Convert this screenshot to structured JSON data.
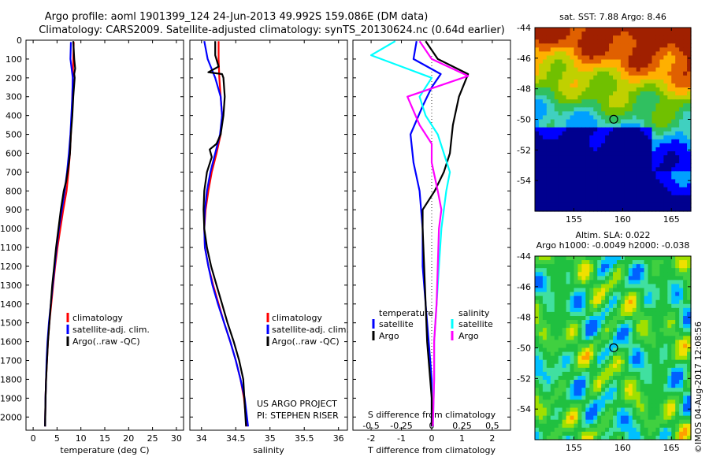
{
  "header": {
    "title1": "Argo profile: aoml 1901399_124 24-Jun-2013 49.992S 159.086E (DM data)",
    "title2": "Climatology: CARS2009. Satellite-adjusted climatology: synTS_20130624.nc (0.64d earlier)"
  },
  "chart_data": [
    {
      "type": "line",
      "id": "temperature",
      "xlabel": "temperature (deg C)",
      "ylabel": "",
      "xlim": [
        -1.5,
        31.5
      ],
      "ylim": [
        2070,
        0
      ],
      "xticks": [
        0,
        5,
        10,
        15,
        20,
        25,
        30
      ],
      "yticks": [
        0,
        100,
        200,
        300,
        400,
        500,
        600,
        700,
        800,
        900,
        1000,
        1100,
        1200,
        1300,
        1400,
        1500,
        1600,
        1700,
        1800,
        1900,
        2000
      ],
      "legend": [
        "climatology",
        "satellite-adj. clim.",
        "Argo(..raw -QC)"
      ],
      "series": [
        {
          "name": "climatology",
          "color": "#ff0000",
          "x": [
            8.5,
            8.4,
            8.3,
            8.2,
            8.1,
            7.9,
            7.7,
            7.4,
            7.0,
            6.3,
            5.7,
            5.1,
            4.6,
            4.2,
            3.8,
            3.4,
            3.1,
            2.9,
            2.7,
            2.6,
            2.5
          ],
          "y": [
            10,
            100,
            200,
            300,
            400,
            500,
            600,
            700,
            800,
            900,
            1000,
            1100,
            1200,
            1300,
            1400,
            1500,
            1600,
            1700,
            1800,
            1900,
            2050
          ]
        },
        {
          "name": "satellite-adj. clim.",
          "color": "#0000ff",
          "x": [
            7.9,
            7.8,
            8.3,
            8.2,
            8.0,
            7.8,
            7.5,
            7.1,
            6.6,
            6.0,
            5.4,
            4.9,
            4.5,
            4.1,
            3.7,
            3.3,
            3.0,
            2.8,
            2.7,
            2.6,
            2.5
          ],
          "y": [
            10,
            100,
            200,
            300,
            400,
            500,
            600,
            700,
            800,
            900,
            1000,
            1100,
            1200,
            1300,
            1400,
            1500,
            1600,
            1700,
            1800,
            1900,
            2050
          ]
        },
        {
          "name": "Argo(..raw -QC)",
          "color": "#000000",
          "x": [
            8.4,
            8.5,
            8.6,
            8.8,
            8.6,
            8.7,
            8.4,
            8.2,
            7.9,
            7.7,
            7.5,
            7.2,
            6.9,
            6.4,
            5.8,
            5.3,
            4.8,
            4.4,
            4.0,
            3.7,
            3.4,
            3.1,
            2.9,
            2.7,
            2.6,
            2.5
          ],
          "y": [
            5,
            50,
            100,
            150,
            180,
            200,
            300,
            400,
            500,
            600,
            650,
            700,
            750,
            800,
            900,
            1000,
            1100,
            1200,
            1300,
            1400,
            1500,
            1600,
            1700,
            1800,
            1900,
            2050
          ]
        }
      ]
    },
    {
      "type": "line",
      "id": "salinity",
      "xlabel": "salinity",
      "ylabel": "",
      "xlim": [
        33.83,
        36.13
      ],
      "ylim": [
        2070,
        0
      ],
      "xticks": [
        34,
        34.5,
        35,
        35.5,
        36
      ],
      "legend": [
        "climatology",
        "satellite-adj. clim.",
        "Argo(..raw -QC)"
      ],
      "series": [
        {
          "name": "climatology",
          "color": "#ff0000",
          "x": [
            34.25,
            34.25,
            34.26,
            34.28,
            34.3,
            34.28,
            34.22,
            34.15,
            34.1,
            34.06,
            34.04,
            34.05,
            34.1,
            34.17,
            34.25,
            34.33,
            34.42,
            34.5,
            34.57,
            34.62,
            34.66
          ],
          "y": [
            5,
            100,
            200,
            300,
            400,
            500,
            600,
            700,
            800,
            900,
            1000,
            1100,
            1200,
            1300,
            1400,
            1500,
            1600,
            1700,
            1800,
            1900,
            2050
          ]
        },
        {
          "name": "satellite-adj. clim.",
          "color": "#0000ff",
          "x": [
            34.04,
            34.09,
            34.2,
            34.28,
            34.3,
            34.27,
            34.2,
            34.13,
            34.08,
            34.05,
            34.04,
            34.05,
            34.1,
            34.16,
            34.24,
            34.33,
            34.42,
            34.5,
            34.57,
            34.63,
            34.68
          ],
          "y": [
            5,
            100,
            200,
            300,
            400,
            500,
            600,
            700,
            800,
            900,
            1000,
            1100,
            1200,
            1300,
            1400,
            1500,
            1600,
            1700,
            1800,
            1900,
            2050
          ]
        },
        {
          "name": "Argo(..raw -QC)",
          "color": "#000000",
          "x": [
            34.2,
            34.2,
            34.25,
            34.1,
            34.3,
            34.32,
            34.34,
            34.32,
            34.28,
            34.22,
            34.12,
            34.15,
            34.08,
            34.04,
            34.03,
            34.04,
            34.08,
            34.14,
            34.22,
            34.3,
            34.38,
            34.47,
            34.55,
            34.61,
            34.65
          ],
          "y": [
            5,
            80,
            140,
            170,
            180,
            200,
            300,
            400,
            500,
            550,
            580,
            620,
            700,
            800,
            900,
            1000,
            1100,
            1200,
            1300,
            1400,
            1500,
            1600,
            1700,
            1800,
            2050
          ]
        }
      ],
      "annotations": [
        "US ARGO PROJECT",
        "PI: STEPHEN RISER"
      ]
    },
    {
      "type": "line",
      "id": "differences",
      "xlabel": "T difference from climatology",
      "xlabel2": "S difference from climatology",
      "xlim": [
        -2.6,
        2.6
      ],
      "ylim": [
        2070,
        0
      ],
      "xticks": [
        -2,
        -1,
        0,
        1,
        2
      ],
      "xticks2_labels": [
        "-0.5",
        "-0.25",
        "0",
        "0.25",
        "0.5"
      ],
      "xticks2_values": [
        -0.5,
        -0.25,
        0,
        0.25,
        0.5
      ],
      "legend_groups": [
        {
          "title": "temperature",
          "items": [
            "satellite",
            "Argo"
          ]
        },
        {
          "title": "salinity",
          "items": [
            "satellite",
            "Argo"
          ]
        }
      ],
      "series": [
        {
          "name": "temperature satellite",
          "color": "#0000ff",
          "x": [
            -0.5,
            -0.6,
            0.3,
            0.0,
            -0.3,
            -0.7,
            -0.6,
            -0.4,
            -0.3,
            -0.3,
            -0.2,
            -0.15,
            -0.1,
            -0.05,
            0.0,
            0.0,
            0.0
          ],
          "y": [
            5,
            100,
            180,
            250,
            350,
            500,
            650,
            800,
            1000,
            1200,
            1400,
            1500,
            1600,
            1700,
            1800,
            1900,
            2050
          ]
        },
        {
          "name": "temperature Argo",
          "color": "#000000",
          "x": [
            -0.2,
            0.2,
            1.2,
            0.9,
            0.7,
            0.6,
            0.4,
            0.1,
            -0.3,
            -0.3,
            -0.25,
            -0.2,
            -0.15,
            -0.05,
            0.0,
            0.0
          ],
          "y": [
            5,
            100,
            180,
            300,
            450,
            600,
            700,
            800,
            900,
            1000,
            1200,
            1400,
            1600,
            1800,
            1900,
            2050
          ]
        },
        {
          "name": "salinity satellite",
          "color": "#00ffff",
          "x": [
            -0.3,
            -0.5,
            0.0,
            -0.1,
            -0.05,
            0.05,
            0.1,
            0.15,
            0.12,
            0.1,
            0.08,
            0.06,
            0.04,
            0.02,
            0.02,
            0.01
          ],
          "y": [
            5,
            80,
            200,
            300,
            400,
            500,
            600,
            700,
            800,
            900,
            1000,
            1200,
            1400,
            1600,
            1800,
            2050
          ]
        },
        {
          "name": "salinity Argo",
          "color": "#ff00ff",
          "x": [
            -0.1,
            0.0,
            0.3,
            -0.2,
            -0.1,
            0.0,
            0.0,
            0.05,
            0.08,
            0.06,
            0.05,
            0.04,
            0.02,
            0.02,
            0.01
          ],
          "y": [
            5,
            100,
            190,
            300,
            450,
            550,
            650,
            800,
            900,
            1000,
            1200,
            1400,
            1600,
            1800,
            2050
          ]
        }
      ]
    },
    {
      "type": "heatmap",
      "id": "sst-map",
      "title": "sat. SST: 7.88 Argo: 8.46",
      "xticks": [
        155,
        160,
        165
      ],
      "yticks": [
        -44,
        -46,
        -48,
        -50,
        -52,
        -54
      ],
      "xlim": [
        151,
        167
      ],
      "ylim": [
        -56,
        -44
      ],
      "marker": {
        "lon": 159.086,
        "lat": -49.992
      }
    },
    {
      "type": "heatmap",
      "id": "sla-map",
      "title": "Altim. SLA: 0.022",
      "subtitle": "Argo h1000: -0.0049 h2000: -0.038",
      "xticks": [
        155,
        160,
        165
      ],
      "yticks": [
        -44,
        -46,
        -48,
        -50,
        -52,
        -54
      ],
      "xlim": [
        151,
        167
      ],
      "ylim": [
        -56,
        -44
      ],
      "marker": {
        "lon": 159.086,
        "lat": -49.992
      }
    }
  ],
  "footer": {
    "stamp": "©IMOS 04-Aug-2017 12:08:56"
  }
}
